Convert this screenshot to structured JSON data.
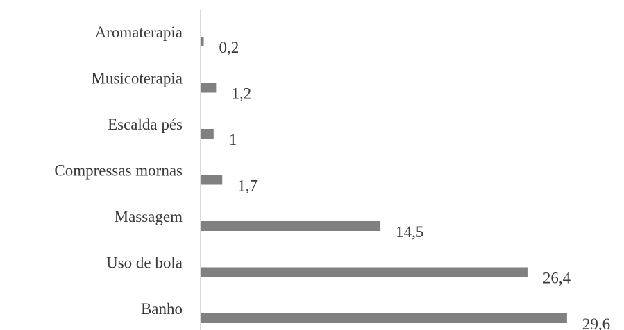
{
  "chart_data": {
    "type": "bar",
    "orientation": "horizontal",
    "categories": [
      "Aromaterapia",
      "Musicoterapia",
      "Escalda pés",
      "Compressas mornas",
      "Massagem",
      "Uso de bola",
      "Banho"
    ],
    "values": [
      0.2,
      1.2,
      1,
      1.7,
      14.5,
      26.4,
      29.6
    ],
    "value_labels": [
      "0,2",
      "1,2",
      "1",
      "1,7",
      "14,5",
      "26,4",
      "29,6"
    ],
    "title": "",
    "xlabel": "",
    "ylabel": "",
    "xlim": [
      0,
      30
    ],
    "grid": false,
    "legend": "none",
    "bar_color": "#808080",
    "axis_color": "#d9d9d9"
  }
}
